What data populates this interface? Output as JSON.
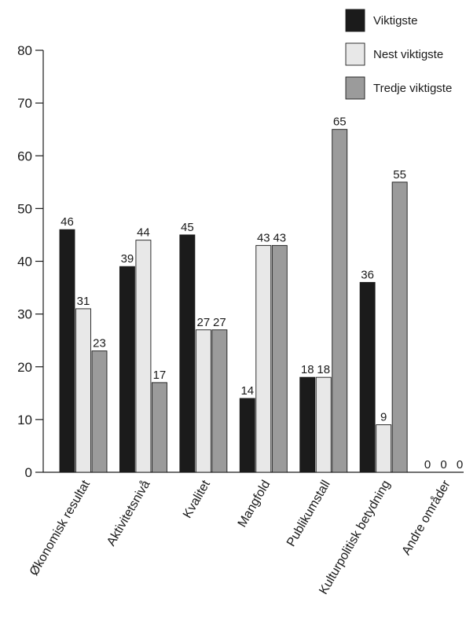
{
  "chart_data": {
    "type": "bar",
    "title": "",
    "xlabel": "",
    "ylabel": "",
    "ylim": [
      0,
      80
    ],
    "yticks": [
      0,
      10,
      20,
      30,
      40,
      50,
      60,
      70,
      80
    ],
    "grid": false,
    "legend_position": "top-right",
    "categories": [
      "Økonomisk resultat",
      "Aktivitetsnivå",
      "Kvalitet",
      "Mangfold",
      "Publikumstall",
      "Kulturpolitisk betydning",
      "Andre områder"
    ],
    "series": [
      {
        "name": "Viktigste",
        "color": "#1b1b1b",
        "values": [
          46,
          39,
          45,
          14,
          18,
          36,
          0
        ]
      },
      {
        "name": "Nest viktigste",
        "color": "#e8e8e8",
        "values": [
          31,
          44,
          27,
          43,
          18,
          9,
          0
        ]
      },
      {
        "name": "Tredje viktigste",
        "color": "#9b9b9b",
        "values": [
          23,
          17,
          27,
          43,
          65,
          55,
          0
        ]
      }
    ]
  }
}
